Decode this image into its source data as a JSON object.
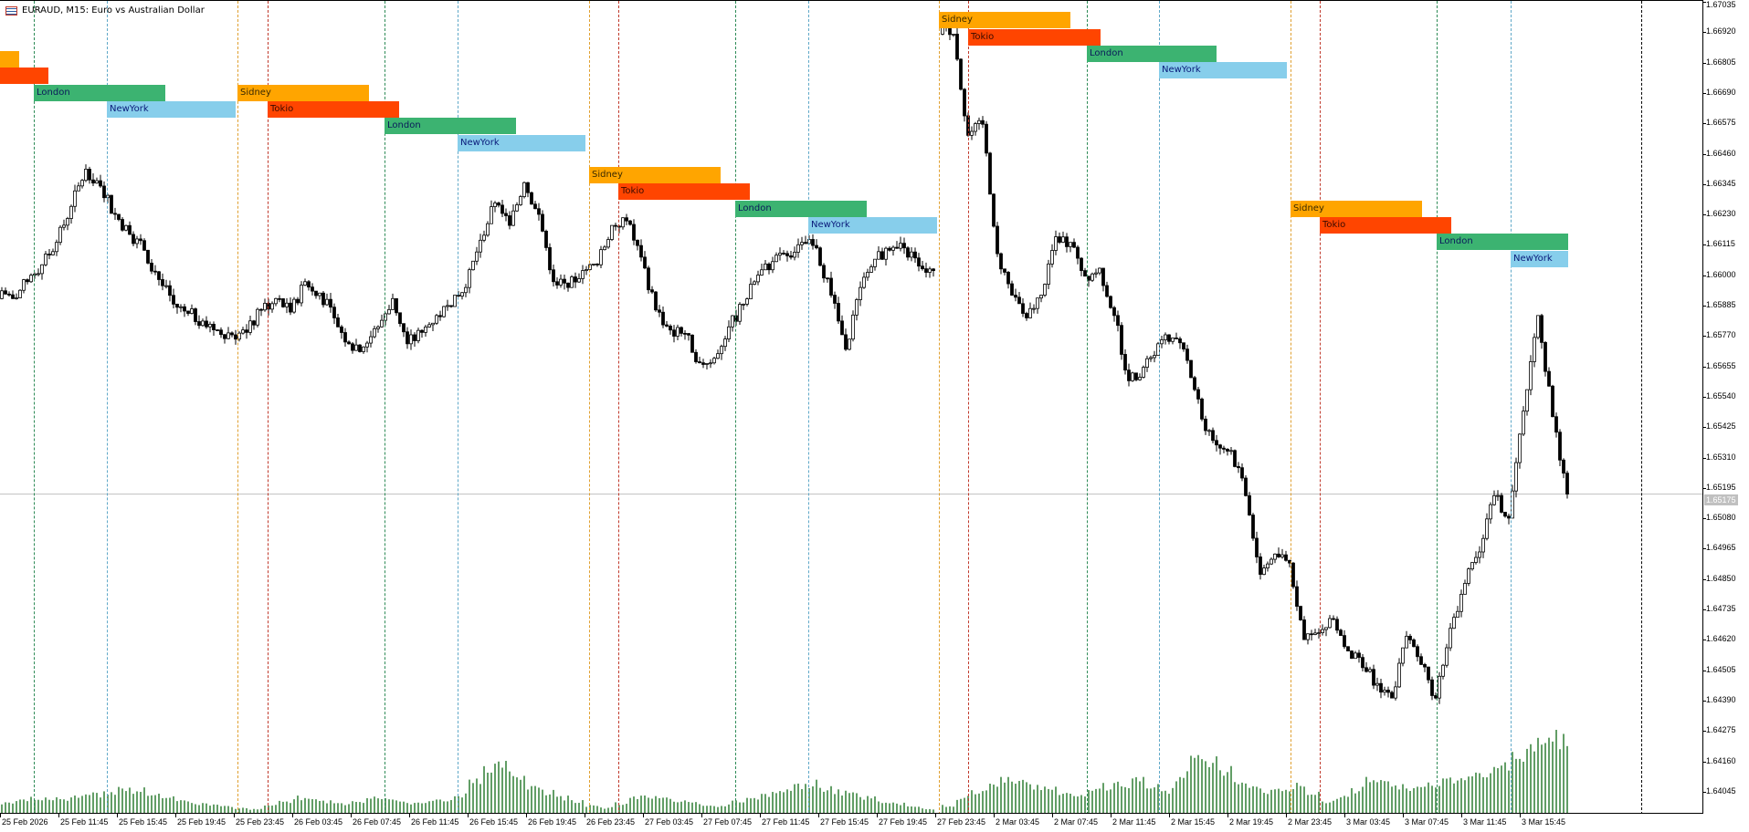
{
  "window": {
    "symbol_title": "EURAUD, M15:  Euro vs Australian Dollar",
    "icon": "chart-symbol-icon"
  },
  "colors": {
    "Sidney": "#FFA500",
    "Tokio": "#FF4500",
    "London": "#3CB371",
    "NewYork": "#87CEEB",
    "bull_body": "#FFFFFF",
    "bear_body": "#000000",
    "volume": "#2E7D32",
    "price_line": "#C0C0C0"
  },
  "sessions": [
    "Sidney",
    "Tokio",
    "London",
    "NewYork"
  ],
  "session_labels": {
    "Sidney": "Sidney",
    "Tokio": "Tokio",
    "London": "London",
    "NewYork": "NewYork"
  },
  "chart_data": {
    "type": "candlestick",
    "symbol": "EURAUD",
    "timeframe": "M15",
    "current_price": "1.65175",
    "y_ticks": [
      "1.67035",
      "1.66920",
      "1.66805",
      "1.66690",
      "1.66575",
      "1.66460",
      "1.66345",
      "1.66230",
      "1.66115",
      "1.66000",
      "1.65885",
      "1.65770",
      "1.65655",
      "1.65540",
      "1.65425",
      "1.65310",
      "1.65195",
      "1.65080",
      "1.64965",
      "1.64850",
      "1.64735",
      "1.64620",
      "1.64505",
      "1.64390",
      "1.64275",
      "1.64160",
      "1.64045"
    ],
    "x_ticks": [
      "25 Feb 2026",
      "25 Feb 11:45",
      "25 Feb 15:45",
      "25 Feb 19:45",
      "25 Feb 23:45",
      "26 Feb 03:45",
      "26 Feb 07:45",
      "26 Feb 11:45",
      "26 Feb 15:45",
      "26 Feb 19:45",
      "26 Feb 23:45",
      "27 Feb 03:45",
      "27 Feb 07:45",
      "27 Feb 11:45",
      "27 Feb 15:45",
      "27 Feb 19:45",
      "27 Feb 23:45",
      "2 Mar 03:45",
      "2 Mar 07:45",
      "2 Mar 11:45",
      "2 Mar 15:45",
      "2 Mar 19:45",
      "2 Mar 23:45",
      "3 Mar 03:45",
      "3 Mar 07:45",
      "3 Mar 11:45",
      "3 Mar 15:45"
    ],
    "ylim": [
      1.64,
      1.6704
    ],
    "hourly_close_before_weekend": [
      1.65915,
      1.65979,
      1.66043,
      1.66128,
      1.66264,
      1.66405,
      1.66341,
      1.66234,
      1.66158,
      1.66098,
      1.65987,
      1.65894,
      1.65859,
      1.6583,
      1.65796,
      1.65778,
      1.65787,
      1.65872,
      1.65915,
      1.65864,
      1.65979,
      1.65936,
      1.65842,
      1.65744,
      1.65732,
      1.65808,
      1.65915,
      1.65744,
      1.65787,
      1.65851,
      1.65885,
      1.65957,
      1.66136,
      1.66277,
      1.66192,
      1.66354,
      1.66234,
      1.65979,
      1.65957,
      1.66021,
      1.66043,
      1.66192,
      1.66209,
      1.66072,
      1.65872,
      1.65796,
      1.65783,
      1.65672,
      1.65689,
      1.65808,
      1.65894,
      1.66004,
      1.66055,
      1.66077,
      1.66128,
      1.66107,
      1.65928,
      1.65723,
      1.65957,
      1.66064,
      1.66098,
      1.66107,
      1.66038,
      1.66021
    ],
    "hourly_close_after_weekend": [
      1.66916,
      1.66533,
      1.66575,
      1.66085,
      1.65928,
      1.65842,
      1.65928,
      1.66149,
      1.66128,
      1.66,
      1.6603,
      1.65851,
      1.65604,
      1.65655,
      1.65744,
      1.65766,
      1.65681,
      1.65459,
      1.65361,
      1.6534,
      1.65169,
      1.64871,
      1.64948,
      1.64914,
      1.64624,
      1.6465,
      1.64701,
      1.64581,
      1.64518,
      1.64458,
      1.64403,
      1.64637,
      1.6453,
      1.64403,
      1.64667,
      1.64837,
      1.64956,
      1.65169,
      1.65084,
      1.65489,
      1.65851,
      1.65468,
      1.65175
    ],
    "hourly_volume_before_weekend": [
      200,
      240,
      280,
      300,
      280,
      320,
      360,
      400,
      500,
      440,
      360,
      300,
      240,
      200,
      180,
      160,
      120,
      100,
      160,
      240,
      300,
      280,
      240,
      200,
      240,
      300,
      280,
      240,
      200,
      240,
      280,
      360,
      600,
      800,
      900,
      700,
      500,
      400,
      300,
      240,
      160,
      120,
      200,
      300,
      320,
      280,
      240,
      200,
      160,
      160,
      240,
      300,
      360,
      440,
      500,
      560,
      480,
      400,
      360,
      300,
      240,
      200,
      160,
      100
    ],
    "hourly_volume_after_weekend": [
      160,
      300,
      400,
      500,
      600,
      560,
      500,
      440,
      400,
      360,
      440,
      500,
      560,
      600,
      500,
      440,
      700,
      1100,
      960,
      800,
      600,
      500,
      400,
      440,
      500,
      400,
      240,
      300,
      440,
      600,
      560,
      500,
      440,
      560,
      600,
      640,
      700,
      760,
      900,
      1000,
      1300,
      1400,
      1360
    ]
  }
}
